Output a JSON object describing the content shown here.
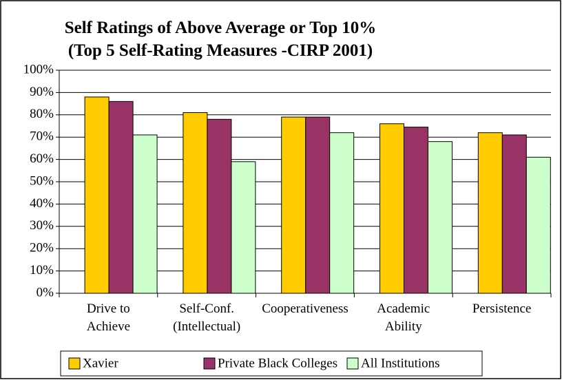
{
  "chart_data": {
    "type": "bar",
    "title": "Self Ratings of Above Average or Top 10%\n(Top 5 Self-Rating Measures -CIRP 2001)",
    "categories": [
      "Drive to\nAchieve",
      "Self-Conf.\n(Intellectual)",
      "Cooperativeness",
      "Academic\nAbility",
      "Persistence"
    ],
    "series": [
      {
        "name": "Xavier",
        "color": "#ffcc00",
        "values": [
          88,
          81,
          79,
          76,
          72
        ]
      },
      {
        "name": "Private Black Colleges",
        "color": "#993366",
        "values": [
          86,
          78,
          79,
          74.5,
          71
        ]
      },
      {
        "name": "All Institutions",
        "color": "#ccffcc",
        "values": [
          71,
          59,
          72,
          68,
          61
        ]
      }
    ],
    "ylim": [
      0,
      100
    ],
    "yticks": [
      {
        "value": 0,
        "label": "0%"
      },
      {
        "value": 10,
        "label": "10%"
      },
      {
        "value": 20,
        "label": "20%"
      },
      {
        "value": 30,
        "label": "30%"
      },
      {
        "value": 40,
        "label": "40%"
      },
      {
        "value": 50,
        "label": "50%"
      },
      {
        "value": 60,
        "label": "60%"
      },
      {
        "value": 70,
        "label": "70%"
      },
      {
        "value": 80,
        "label": "80%"
      },
      {
        "value": 90,
        "label": "90%"
      },
      {
        "value": 100,
        "label": "100%"
      }
    ],
    "grid": true,
    "legend": "bottom"
  }
}
